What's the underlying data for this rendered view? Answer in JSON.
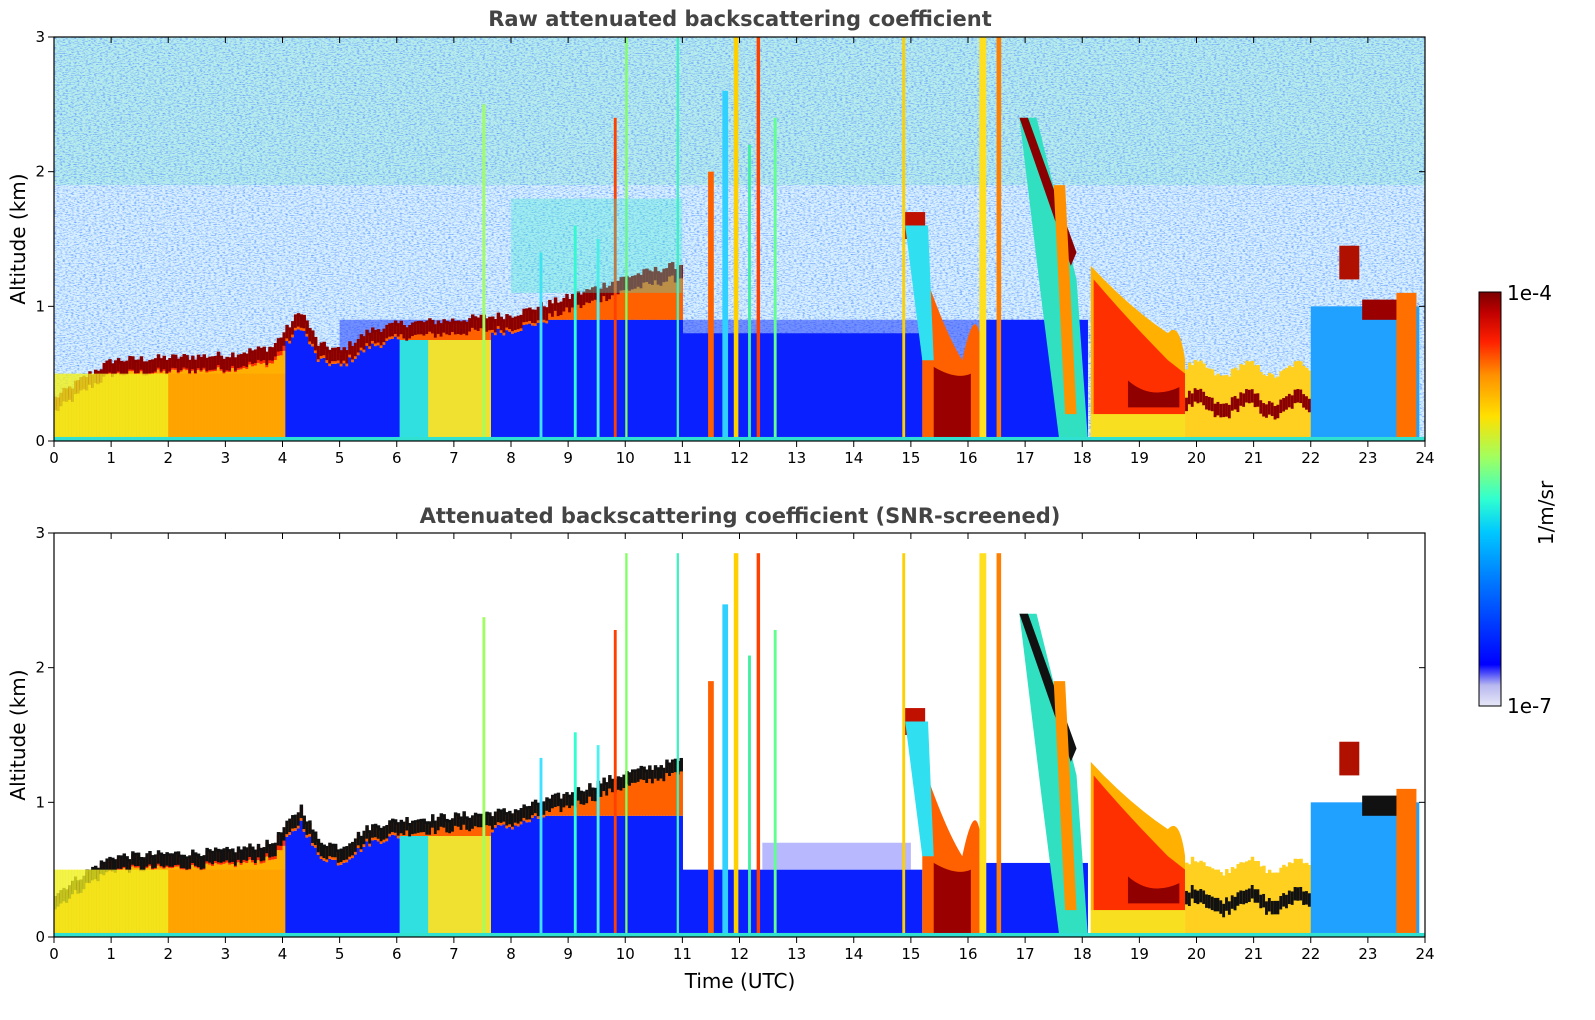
{
  "chart_data": [
    {
      "type": "heatmap",
      "title": "Raw attenuated backscattering coefficient",
      "xlabel": "",
      "ylabel": "Altitude (km)",
      "xlim": [
        0,
        24
      ],
      "ylim": [
        0,
        3
      ],
      "xticks": [
        0,
        1,
        2,
        3,
        4,
        5,
        6,
        7,
        8,
        9,
        10,
        11,
        12,
        13,
        14,
        15,
        16,
        17,
        18,
        19,
        20,
        21,
        22,
        23,
        24
      ],
      "yticks": [
        0,
        1,
        2,
        3
      ],
      "screened": false,
      "colormap": "jet",
      "layers": [
        {
          "name": "boundary-layer-top",
          "x": [
            0,
            1,
            2,
            3,
            4,
            5,
            6,
            7,
            8,
            9,
            10,
            11
          ],
          "y": [
            0.3,
            0.55,
            0.6,
            0.62,
            0.7,
            0.65,
            0.8,
            0.85,
            0.92,
            1.05,
            1.2,
            1.3
          ]
        },
        {
          "name": "cloud-base-evening",
          "x": [
            18.2,
            19,
            19.5,
            20,
            21,
            21.8,
            22.5,
            23,
            23.8
          ],
          "y": [
            0.5,
            0.45,
            0.4,
            0.3,
            0.28,
            0.22,
            1.3,
            1.0,
            0.95
          ]
        }
      ]
    },
    {
      "type": "heatmap",
      "title": "Attenuated backscattering coefficient (SNR-screened)",
      "xlabel": "Time (UTC)",
      "ylabel": "Altitude (km)",
      "xlim": [
        0,
        24
      ],
      "ylim": [
        0,
        3
      ],
      "xticks": [
        0,
        1,
        2,
        3,
        4,
        5,
        6,
        7,
        8,
        9,
        10,
        11,
        12,
        13,
        14,
        15,
        16,
        17,
        18,
        19,
        20,
        21,
        22,
        23,
        24
      ],
      "yticks": [
        0,
        1,
        2,
        3
      ],
      "screened": true,
      "colormap": "jet"
    }
  ],
  "colorbar": {
    "label": "1/m/sr",
    "max_label": "1e-4",
    "min_label": "1e-7",
    "colors": [
      "#e8e8f8",
      "#b8b8f0",
      "#0000ff",
      "#0078ff",
      "#00c8ff",
      "#30ffd0",
      "#a0ff60",
      "#ffe000",
      "#ff9000",
      "#ff2000",
      "#c00000",
      "#7a0000"
    ]
  }
}
